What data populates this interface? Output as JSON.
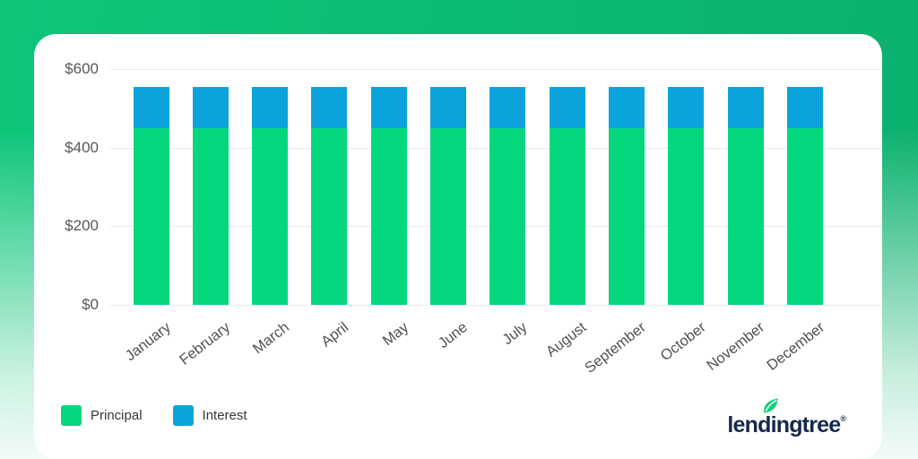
{
  "chart_data": {
    "type": "bar",
    "stacked": true,
    "title": "",
    "xlabel": "",
    "ylabel": "",
    "categories": [
      "January",
      "February",
      "March",
      "April",
      "May",
      "June",
      "July",
      "August",
      "September",
      "October",
      "November",
      "December"
    ],
    "series": [
      {
        "name": "Principal",
        "color": "#04d77e",
        "values": [
          450,
          450,
          450,
          450,
          450,
          450,
          450,
          450,
          450,
          450,
          450,
          450
        ]
      },
      {
        "name": "Interest",
        "color": "#0aa3dc",
        "values": [
          105,
          105,
          105,
          105,
          105,
          105,
          105,
          105,
          105,
          105,
          105,
          105
        ]
      }
    ],
    "ylim": [
      0,
      600
    ],
    "yticks": [
      {
        "value": 0,
        "label": "$0"
      },
      {
        "value": 200,
        "label": "$200"
      },
      {
        "value": 400,
        "label": "$400"
      },
      {
        "value": 600,
        "label": "$600"
      }
    ],
    "grid": true,
    "legend_position": "bottom-left"
  },
  "colors": {
    "background_green_top": "#0dc678",
    "background_green_dark": "#0bb06c",
    "card": "#ffffff",
    "gridline": "#eaeaea",
    "axis_text": "#54585c"
  },
  "logo": {
    "text": "lendingtree",
    "registered": "®",
    "wordmark_color": "#15294b",
    "leaf_color": "#0ed179"
  }
}
